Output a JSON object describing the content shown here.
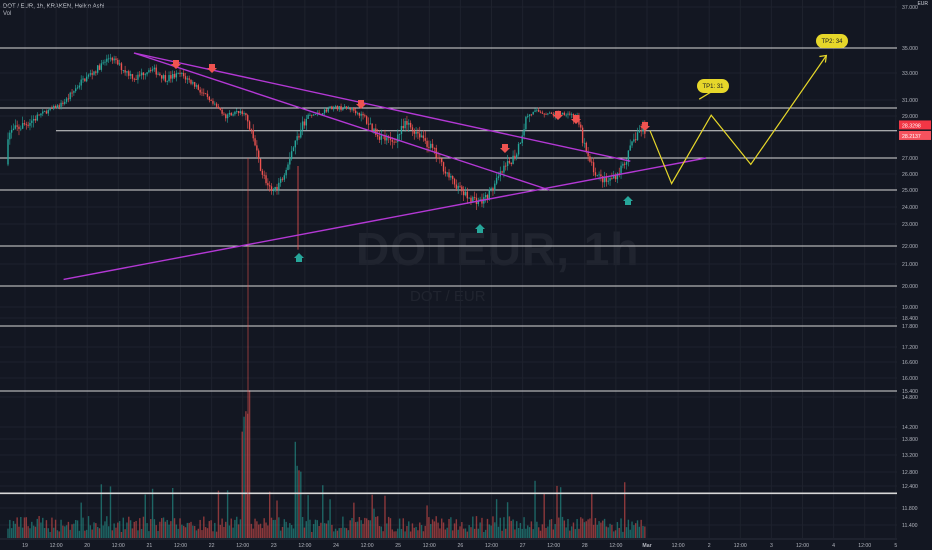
{
  "header": {
    "title": "DOT / EUR, 1h, KRAKEN, Heikin Ashi",
    "volume_label": "Vol",
    "currency_label": "EUR"
  },
  "watermark": {
    "symbol": "DOTEUR, 1h",
    "name": "DOT / EUR"
  },
  "colors": {
    "background": "#131722",
    "up": "#26a69a",
    "down": "#ef5350",
    "trendline": "#b338d4",
    "projection": "#e6d72a",
    "level": "#d8d8d8",
    "last_price_badge": "#f23645"
  },
  "chart_data": {
    "type": "candlestick",
    "price_axis": {
      "min": 10.5,
      "max": 37.4,
      "ticks": [
        "37.000",
        "35.000",
        "33.000",
        "31.000",
        "29.000",
        "27.000",
        "26.000",
        "25.000",
        "24.000",
        "23.000",
        "22.000",
        "21.000",
        "20.000",
        "19.000",
        "18.400",
        "17.800",
        "17.200",
        "16.600",
        "16.000",
        "15.400",
        "14.800",
        "14.200",
        "13.800",
        "13.200",
        "12.800",
        "12.400",
        "11.800",
        "11.400"
      ]
    },
    "time_axis": {
      "ticks": [
        "19",
        "12:00",
        "20",
        "12:00",
        "21",
        "12:00",
        "22",
        "12:00",
        "23",
        "12:00",
        "24",
        "12:00",
        "25",
        "12:00",
        "26",
        "12:00",
        "27",
        "12:00",
        "28",
        "12:00",
        "Mar",
        "12:00",
        "2",
        "12:00",
        "3",
        "12:00",
        "4",
        "12:00",
        "5"
      ]
    },
    "price_badges": [
      "28.3298",
      "28.2137"
    ],
    "horizontal_levels": [
      35.0,
      30.0,
      28.3,
      27.0,
      25.0,
      22.0,
      20.0,
      17.8,
      15.4,
      12.2
    ],
    "trendlines": [
      {
        "from": {
          "bar": 0,
          "price": 34.6
        },
        "to": {
          "bar": 282,
          "price": 26.8
        }
      },
      {
        "from": {
          "bar": 0,
          "price": 34.6
        },
        "to": {
          "bar": 236,
          "price": 25.0
        }
      },
      {
        "from": {
          "bar": -40,
          "price": 20.3
        },
        "to": {
          "bar": 325,
          "price": 27.0
        }
      }
    ],
    "projection_path": [
      [
        169,
        28.3
      ],
      [
        175,
        25.4
      ],
      [
        186,
        29.1
      ],
      [
        197,
        26.6
      ],
      [
        218,
        34.4
      ]
    ],
    "annotations": [
      {
        "text": "TP1: 31",
        "bar": 191,
        "price": 32.1
      },
      {
        "text": "TP2: 34",
        "bar": 219,
        "price": 36.0
      }
    ],
    "down_arrows_bar": [
      0,
      10,
      20,
      60,
      137,
      147,
      152,
      171
    ],
    "up_arrows_bar": [
      -38,
      108,
      160
    ]
  }
}
